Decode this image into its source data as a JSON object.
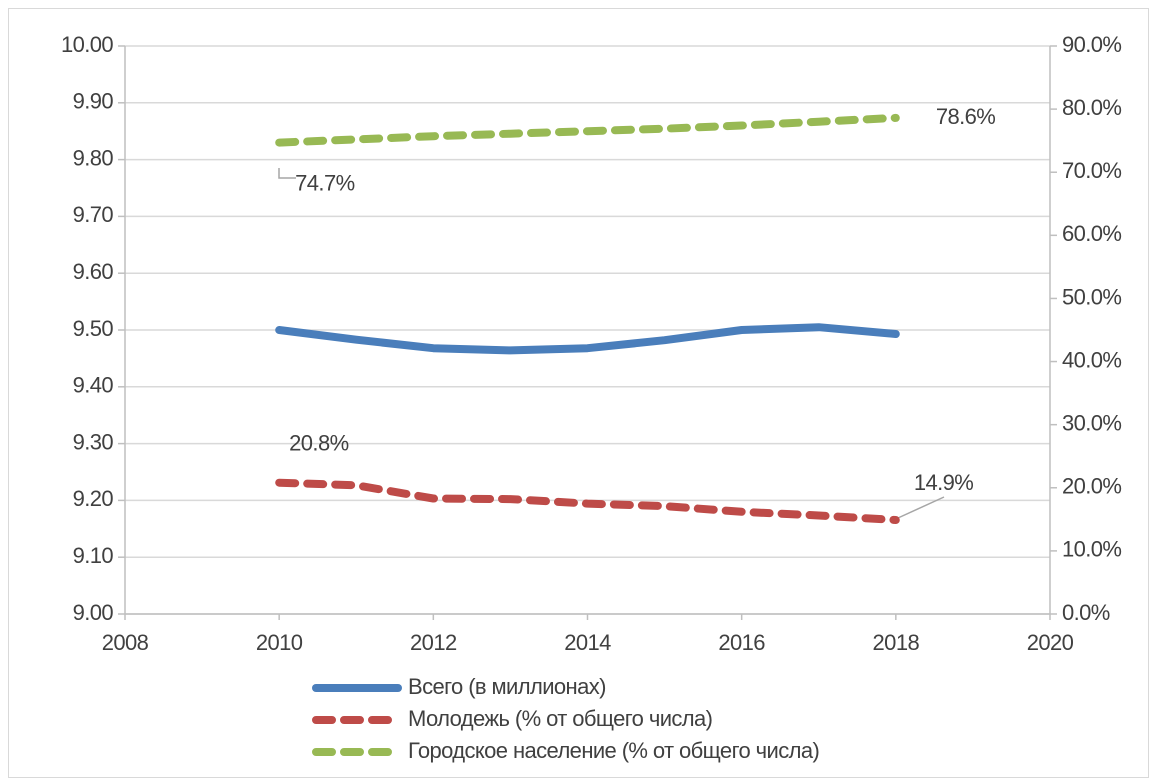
{
  "chart_data": {
    "type": "line",
    "x": [
      2010,
      2011,
      2012,
      2013,
      2014,
      2015,
      2016,
      2017,
      2018
    ],
    "xlim": [
      2008,
      2020
    ],
    "xticks": [
      2008,
      2010,
      2012,
      2014,
      2016,
      2018,
      2020
    ],
    "ylim": [
      9.0,
      10.0
    ],
    "yticks": [
      {
        "value": 9.0,
        "label": "9.00"
      },
      {
        "value": 9.1,
        "label": "9.10"
      },
      {
        "value": 9.2,
        "label": "9.20"
      },
      {
        "value": 9.3,
        "label": "9.30"
      },
      {
        "value": 9.4,
        "label": "9.40"
      },
      {
        "value": 9.5,
        "label": "9.50"
      },
      {
        "value": 9.6,
        "label": "9.60"
      },
      {
        "value": 9.7,
        "label": "9.70"
      },
      {
        "value": 9.8,
        "label": "9.80"
      },
      {
        "value": 9.9,
        "label": "9.90"
      },
      {
        "value": 10.0,
        "label": "10.00"
      }
    ],
    "y2lim": [
      0,
      90
    ],
    "y2ticks": [
      {
        "value": 0,
        "label": "0.0%"
      },
      {
        "value": 10,
        "label": "10.0%"
      },
      {
        "value": 20,
        "label": "20.0%"
      },
      {
        "value": 30,
        "label": "30.0%"
      },
      {
        "value": 40,
        "label": "40.0%"
      },
      {
        "value": 50,
        "label": "50.0%"
      },
      {
        "value": 60,
        "label": "60.0%"
      },
      {
        "value": 70,
        "label": "70.0%"
      },
      {
        "value": 80,
        "label": "80.0%"
      },
      {
        "value": 90,
        "label": "90.0%"
      }
    ],
    "grid": true,
    "legend": "bottom",
    "series": [
      {
        "name": "Всего (в миллионах)",
        "color": "#4a7ebb",
        "dashed": false,
        "values": [
          9.5,
          9.483,
          9.468,
          9.464,
          9.468,
          9.482,
          9.5,
          9.505,
          9.493
        ]
      },
      {
        "name": "Молодежь (% от общего числа)",
        "color": "#be4b48",
        "dashed": true,
        "axis": "y2",
        "values": [
          20.8,
          20.4,
          18.3,
          18.2,
          17.5,
          17.1,
          16.2,
          15.6,
          14.9
        ],
        "value_labels": [
          "20.8%",
          null,
          null,
          null,
          null,
          null,
          null,
          null,
          "14.9%"
        ]
      },
      {
        "name": "Городское население (% от общего числа)",
        "color": "#98b954",
        "dashed": true,
        "axis": "y2",
        "values": [
          74.7,
          75.2,
          75.7,
          76.1,
          76.5,
          76.9,
          77.4,
          78.0,
          78.6
        ],
        "value_labels": [
          "74.7%",
          null,
          null,
          null,
          null,
          null,
          null,
          null,
          "78.6%"
        ]
      }
    ]
  }
}
